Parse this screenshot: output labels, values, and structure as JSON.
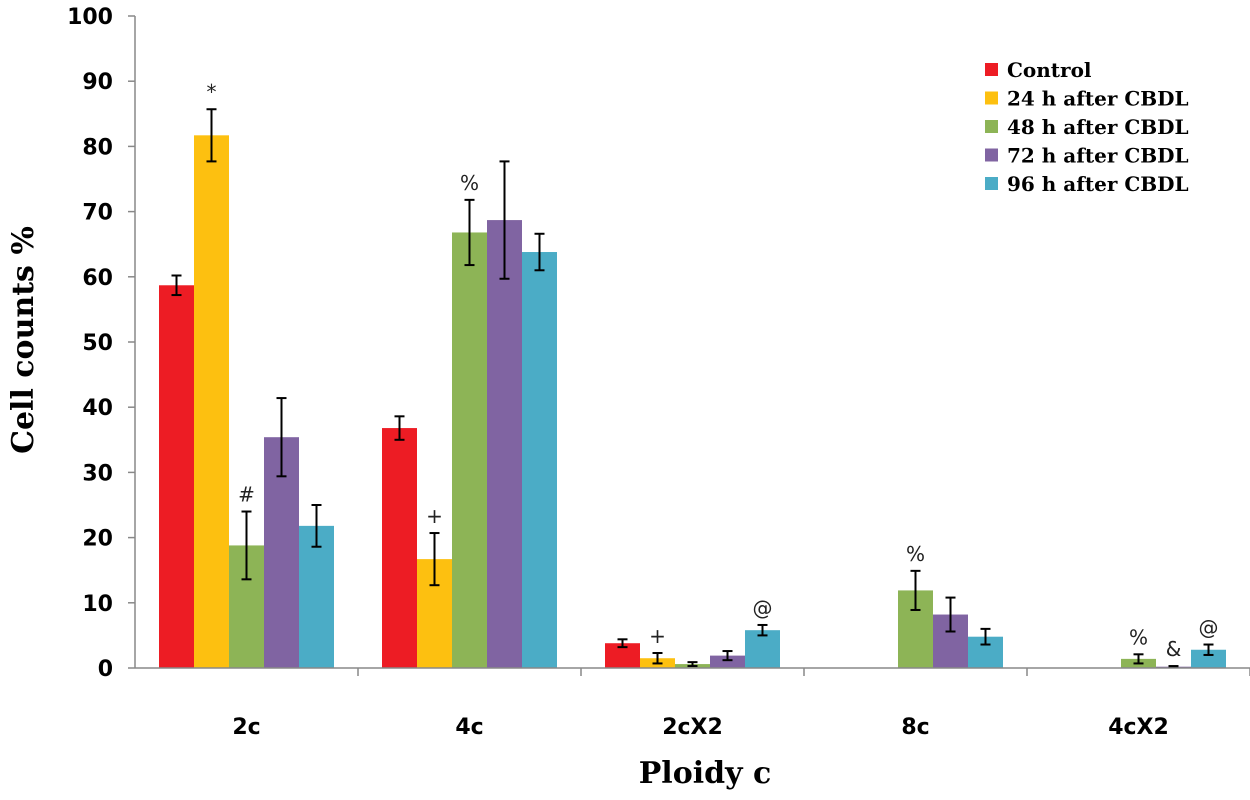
{
  "chart_data": {
    "type": "bar",
    "title": "",
    "xlabel": "Ploidy c",
    "ylabel": "Cell counts %",
    "ylim": [
      0,
      100
    ],
    "yticks": [
      "0",
      "10",
      "20",
      "30",
      "40",
      "50",
      "60",
      "70",
      "80",
      "90",
      "100"
    ],
    "categories": [
      "2c",
      "4c",
      "2cX2",
      "8c",
      "4cX2"
    ],
    "legend_position": "top-right",
    "series": [
      {
        "name": "Control",
        "color": "#ED1C24",
        "values": [
          58.7,
          36.8,
          3.8,
          0,
          0
        ],
        "errors": [
          1.5,
          1.8,
          0.6,
          0,
          0
        ],
        "annotations": [
          "",
          "",
          "",
          "",
          ""
        ]
      },
      {
        "name": "24 h after CBDL",
        "color": "#FDC010",
        "values": [
          81.7,
          16.7,
          1.5,
          0,
          0
        ],
        "errors": [
          4.0,
          4.0,
          0.8,
          0,
          0
        ],
        "annotations": [
          "*",
          "+",
          "+",
          "",
          ""
        ]
      },
      {
        "name": "48 h after CBDL",
        "color": "#8DB456",
        "values": [
          18.8,
          66.8,
          0.6,
          11.9,
          1.4
        ],
        "errors": [
          5.2,
          5.0,
          0.3,
          3.0,
          0.7
        ],
        "annotations": [
          "#",
          "%",
          "",
          "%",
          "%"
        ]
      },
      {
        "name": "72 h after CBDL",
        "color": "#8064A2",
        "values": [
          35.4,
          68.7,
          1.9,
          8.2,
          0.2
        ],
        "errors": [
          6.0,
          9.0,
          0.7,
          2.6,
          0.1
        ],
        "annotations": [
          "",
          "",
          "",
          "",
          "&"
        ]
      },
      {
        "name": "96 h after CBDL",
        "color": "#4BACC6",
        "values": [
          21.8,
          63.8,
          5.8,
          4.8,
          2.8
        ],
        "errors": [
          3.2,
          2.8,
          0.8,
          1.2,
          0.8
        ],
        "annotations": [
          "",
          "",
          "@",
          "",
          "@"
        ]
      }
    ]
  }
}
